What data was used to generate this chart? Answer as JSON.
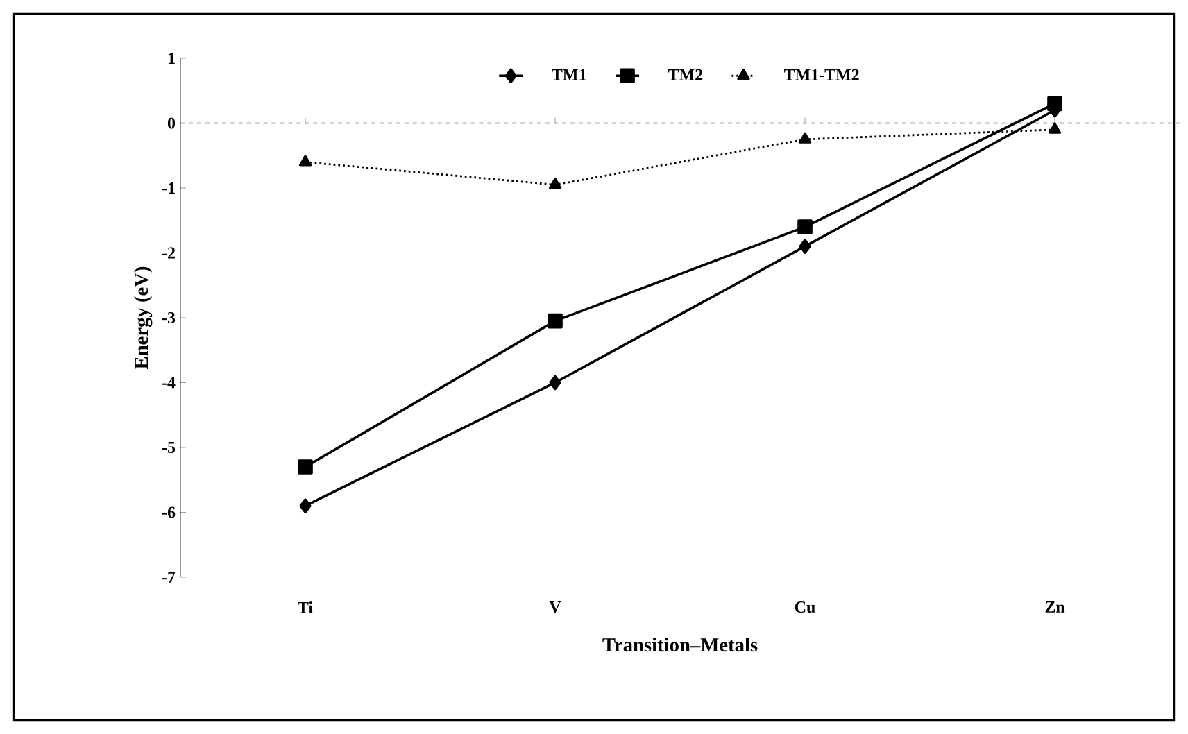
{
  "chart_data": {
    "type": "line",
    "xlabel": "Transition–Metals",
    "ylabel": "Energy (eV)",
    "categories": [
      "Ti",
      "V",
      "Cu",
      "Zn"
    ],
    "series": [
      {
        "name": "TM1",
        "color": "#000000",
        "values": [
          -5.9,
          -4.0,
          -1.9,
          0.2
        ],
        "marker": "diamond",
        "line_style": "solid"
      },
      {
        "name": "TM2",
        "color": "#000000",
        "values": [
          -5.3,
          -3.05,
          -1.6,
          0.3
        ],
        "marker": "square",
        "line_style": "solid"
      },
      {
        "name": "TM1-TM2",
        "color": "#000000",
        "values": [
          -0.6,
          -0.95,
          -0.25,
          -0.1
        ],
        "marker": "triangle",
        "line_style": "dotted"
      }
    ],
    "ref_lines": [
      {
        "axis": "y",
        "value": 0,
        "line_style": "dashed",
        "color": "#555555"
      }
    ],
    "ylim": [
      -7,
      1
    ],
    "yticks": [
      -7,
      -6,
      -5,
      -4,
      -3,
      -2,
      -1,
      0,
      1
    ],
    "grid": false,
    "legend": "top"
  }
}
